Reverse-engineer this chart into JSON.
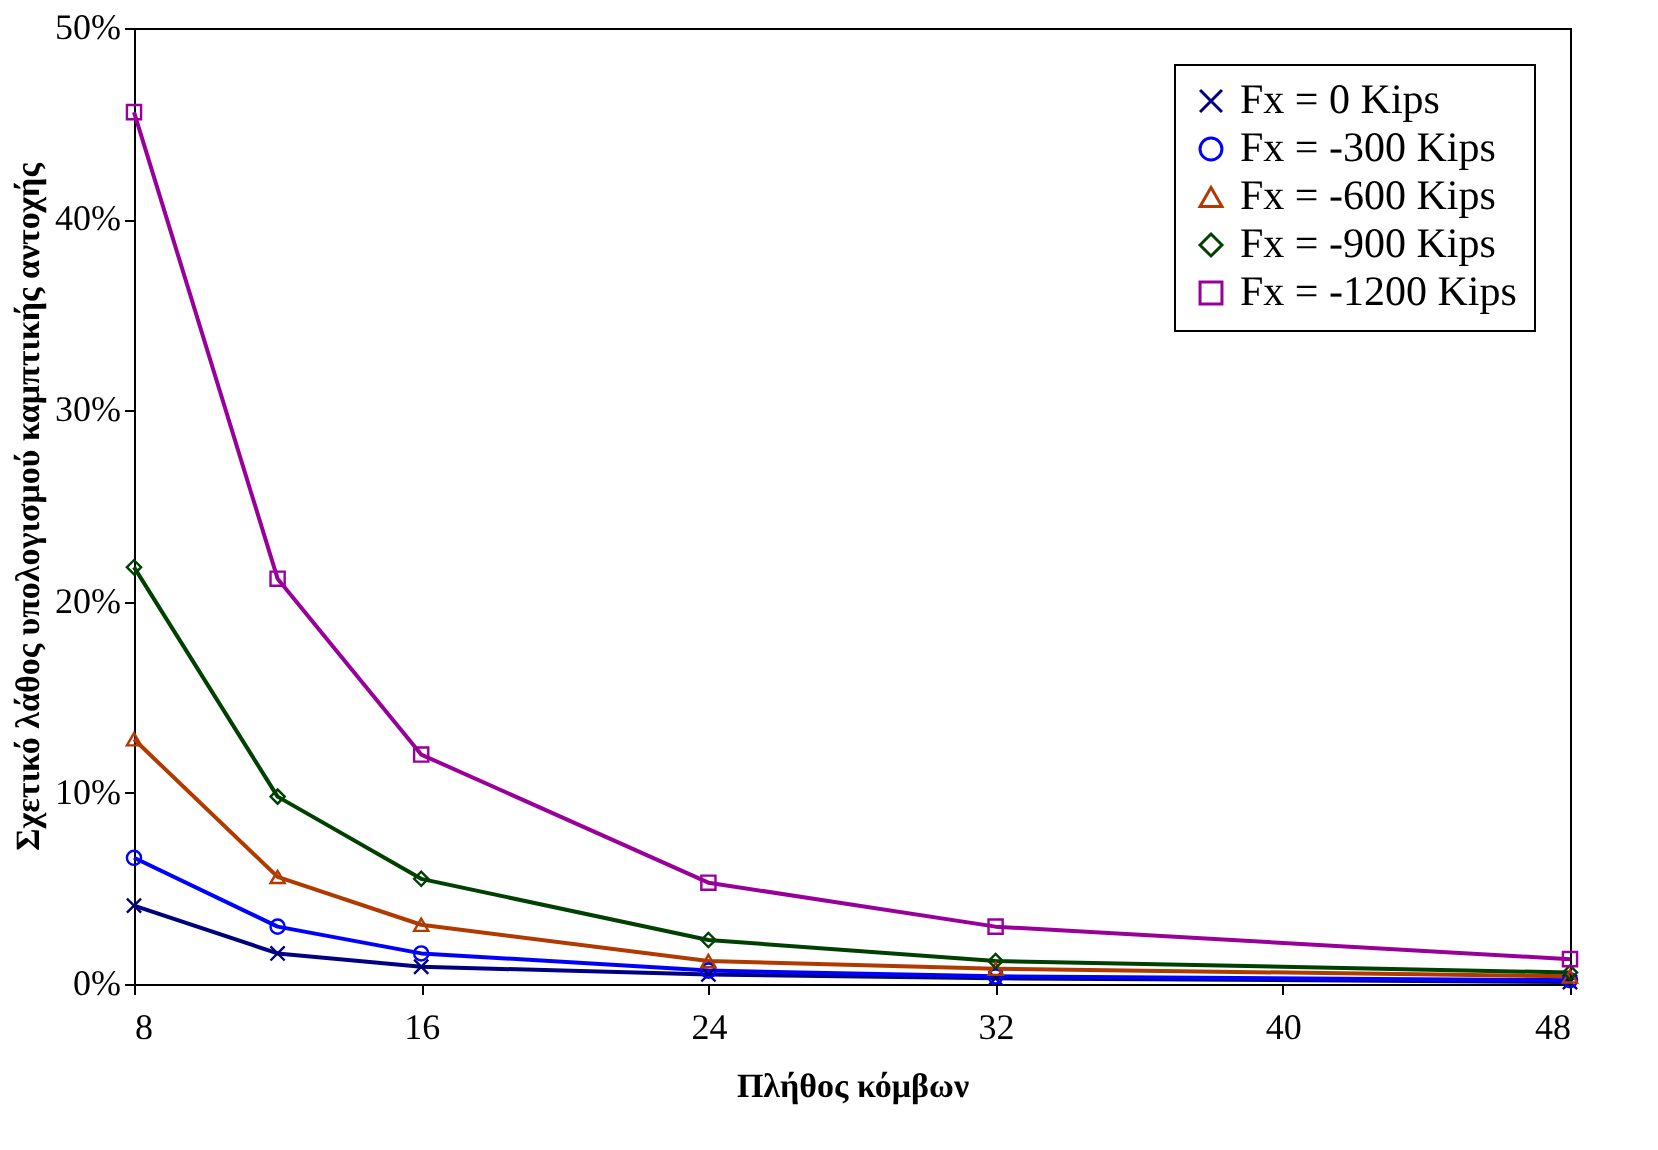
{
  "chart_data": {
    "type": "line",
    "xlabel": "Πλήθος κόμβων",
    "ylabel": "Σχετικό λάθος υπολογισμού καμπτικής αντοχής",
    "x": [
      8,
      12,
      16,
      24,
      32,
      48
    ],
    "series": [
      {
        "name": "Fx = 0 Kips",
        "color": "#000080",
        "marker": "cross",
        "values": [
          4.1,
          1.6,
          0.9,
          0.5,
          0.3,
          0.1
        ]
      },
      {
        "name": "Fx = -300 Kips",
        "color": "#0000ff",
        "marker": "circle",
        "values": [
          6.6,
          3.0,
          1.6,
          0.7,
          0.4,
          0.2
        ]
      },
      {
        "name": "Fx = -600 Kips",
        "color": "#b03a00",
        "marker": "triangle",
        "values": [
          12.8,
          5.6,
          3.1,
          1.2,
          0.8,
          0.4
        ]
      },
      {
        "name": "Fx = -900 Kips",
        "color": "#004000",
        "marker": "diamond",
        "values": [
          21.8,
          9.8,
          5.5,
          2.3,
          1.2,
          0.6
        ]
      },
      {
        "name": "Fx = -1200 Kips",
        "color": "#990099",
        "marker": "square",
        "values": [
          45.6,
          21.2,
          12.0,
          5.3,
          3.0,
          1.3
        ]
      }
    ],
    "xlim": [
      8,
      48
    ],
    "xticks": [
      8,
      16,
      24,
      32,
      40,
      48
    ],
    "ylim": [
      0,
      50
    ],
    "yticks": [
      {
        "value": 0,
        "label": "0%"
      },
      {
        "value": 10,
        "label": "10%"
      },
      {
        "value": 20,
        "label": "20%"
      },
      {
        "value": 30,
        "label": "30%"
      },
      {
        "value": 40,
        "label": "40%"
      },
      {
        "value": 50,
        "label": "50%"
      }
    ],
    "grid": false,
    "legend": "top right",
    "line_style": "solid"
  }
}
